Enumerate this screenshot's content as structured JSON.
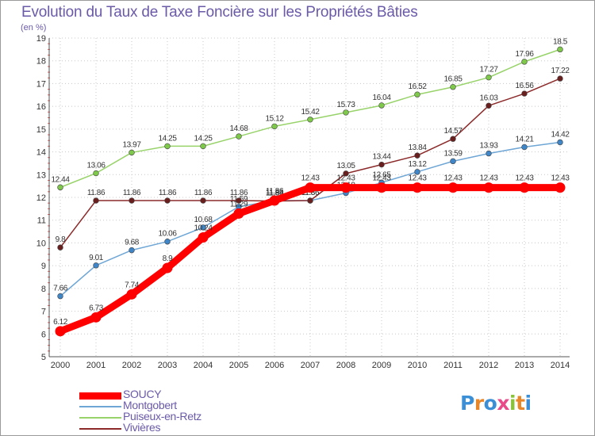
{
  "header": {
    "title": "Evolution du Taux de Taxe Foncière sur les Propriétés Bâties",
    "unit": "(en %)"
  },
  "logo": {
    "text": "Proxiti",
    "letter_colors": [
      "#3a8fd6",
      "#e8862a",
      "#3a8fd6",
      "#e84a8a",
      "#8ac23a",
      "#e8862a",
      "#3a8fd6"
    ]
  },
  "chart_data": {
    "type": "line",
    "title": "Evolution du Taux de Taxe Foncière sur les Propriétés Bâties",
    "ylabel": "(en %)",
    "xlabel": "",
    "x": [
      "2000",
      "2001",
      "2002",
      "2003",
      "2004",
      "2005",
      "2006",
      "2007",
      "2008",
      "2009",
      "2010",
      "2011",
      "2012",
      "2013",
      "2014"
    ],
    "ylim": [
      5,
      19
    ],
    "yticks": [
      "5",
      "6",
      "7",
      "8",
      "9",
      "10",
      "11",
      "12",
      "13",
      "14",
      "15",
      "16",
      "17",
      "18",
      "19"
    ],
    "grid": "dotted",
    "legend_position": "bottom-left",
    "series": [
      {
        "name": "Puiseux-en-Retz",
        "color": "#98d36a",
        "marker": "#7ec84a",
        "values": [
          12.44,
          13.06,
          13.97,
          14.25,
          14.25,
          14.68,
          15.12,
          15.42,
          15.73,
          16.04,
          16.52,
          16.85,
          17.27,
          17.96,
          18.5
        ],
        "labels": [
          "12.44",
          "13.06",
          "13.97",
          "14.25",
          "14.25",
          "14.68",
          "15.12",
          "15.42",
          "15.73",
          "16.04",
          "16.52",
          "16.85",
          "17.27",
          "17.96",
          "18.5"
        ]
      },
      {
        "name": "Montgobert",
        "color": "#6ea6d6",
        "marker": "#3f86c8",
        "values": [
          7.66,
          9.01,
          9.68,
          10.06,
          10.68,
          11.59,
          11.86,
          11.86,
          12.19,
          12.65,
          13.12,
          13.59,
          13.93,
          14.21,
          14.42
        ],
        "labels": [
          "7.66",
          "9.01",
          "9.68",
          "10.06",
          "10.68",
          "11.59",
          "11.86",
          "11.86",
          "12.19",
          "12.65",
          "13.12",
          "13.59",
          "13.93",
          "14.21",
          "14.42"
        ]
      },
      {
        "name": "Vivières",
        "color": "#8c2a2a",
        "marker": "#6a1f1f",
        "values": [
          9.8,
          11.86,
          11.86,
          11.86,
          11.86,
          11.86,
          11.84,
          11.86,
          13.05,
          13.44,
          13.84,
          14.57,
          16.03,
          16.56,
          17.22
        ],
        "labels": [
          "9.8",
          "11.86",
          "11.86",
          "11.86",
          "11.86",
          "11.86",
          "11.84",
          "11.86",
          "13.05",
          "13.44",
          "13.84",
          "14.57",
          "16.03",
          "16.56",
          "17.22"
        ]
      },
      {
        "name": "SOUCY",
        "color": "#ff0000",
        "marker": "#ff0000",
        "values": [
          6.12,
          6.73,
          7.74,
          8.9,
          10.24,
          11.29,
          11.86,
          12.43,
          12.43,
          12.43,
          12.43,
          12.43,
          12.43,
          12.43,
          12.43
        ],
        "labels": [
          "6.12",
          "6.73",
          "7.74",
          "8.9",
          "10.24",
          "11.29",
          "11.86",
          "12.43",
          "12.43",
          "12.43",
          "12.43",
          "12.43",
          "12.43",
          "12.43",
          "12.43"
        ]
      }
    ],
    "legend": [
      "SOUCY",
      "Montgobert",
      "Puiseux-en-Retz",
      "Vivières"
    ]
  }
}
